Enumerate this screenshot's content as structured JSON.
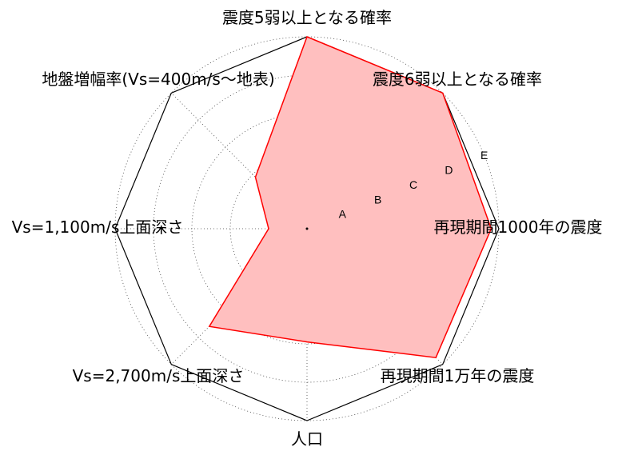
{
  "chart_data": {
    "type": "radar",
    "title": "",
    "axes": [
      "震度5弱以上となる確率",
      "震度6弱以上となる確率",
      "再現期間1000年の震度",
      "再現期間1万年の震度",
      "人口",
      "Vs=2,700m/s上面深さ",
      "Vs=1,100m/s上面深さ",
      "地盤増幅率(Vs=400m/s～地表)"
    ],
    "rings": [
      "A",
      "B",
      "C",
      "D",
      "E"
    ],
    "rmax": 5,
    "values": [
      5.0,
      5.0,
      4.8,
      4.75,
      2.95,
      3.6,
      1.0,
      1.9
    ],
    "grid": true,
    "colors": {
      "fill": "#ffbfbf",
      "line": "#ff0000",
      "frame": "#000000",
      "grid": "#444444"
    }
  }
}
